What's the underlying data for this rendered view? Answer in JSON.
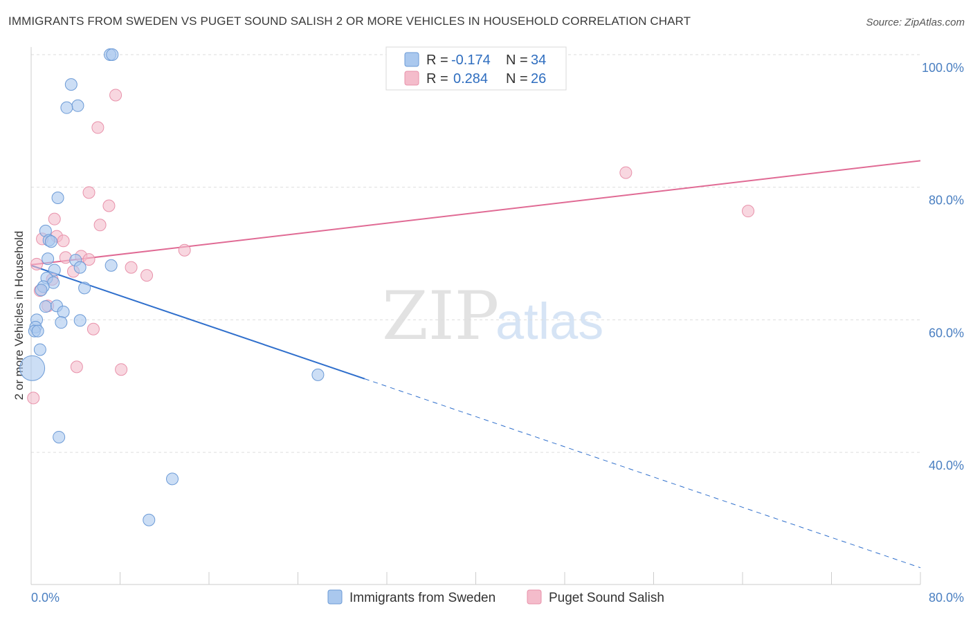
{
  "title": "IMMIGRANTS FROM SWEDEN VS PUGET SOUND SALISH 2 OR MORE VEHICLES IN HOUSEHOLD CORRELATION CHART",
  "source": "Source: ZipAtlas.com",
  "watermark": {
    "zip": "ZIP",
    "atlas": "atlas"
  },
  "legend": {
    "rows": [
      {
        "r_label": "R =",
        "r_value": "-0.174",
        "n_label": "N =",
        "n_value": "34"
      },
      {
        "r_label": "R =",
        "r_value": "0.284",
        "n_label": "N =",
        "n_value": "26"
      }
    ]
  },
  "colors": {
    "blue_fill": "#aac8ee",
    "blue_stroke": "#6b9ad6",
    "blue_line": "#2f6fcc",
    "pink_fill": "#f4bccb",
    "pink_stroke": "#e891aa",
    "pink_line": "#e06a94",
    "grid": "#dddddd",
    "tick_text": "#4a7fc1"
  },
  "chart_data": {
    "type": "scatter",
    "ylabel": "2 or more Vehicles in Household",
    "xlabel": "",
    "x_tick_labels": [
      "0.0%",
      "80.0%"
    ],
    "y_tick_labels": [
      "100.0%",
      "80.0%",
      "60.0%",
      "40.0%"
    ],
    "y_ticks": [
      100,
      80,
      60,
      40
    ],
    "xlim": [
      0,
      80
    ],
    "ylim": [
      22,
      102
    ],
    "grid": true,
    "legend_position": "top-center",
    "series": [
      {
        "name": "Immigrants from Sweden",
        "color": "#aac8ee",
        "stroke": "#6b9ad6",
        "points": [
          {
            "x": 7.1,
            "y": 100.0
          },
          {
            "x": 7.3,
            "y": 100.0
          },
          {
            "x": 3.6,
            "y": 95.5
          },
          {
            "x": 4.2,
            "y": 92.3
          },
          {
            "x": 3.2,
            "y": 92.0
          },
          {
            "x": 2.4,
            "y": 78.4
          },
          {
            "x": 1.3,
            "y": 73.4
          },
          {
            "x": 1.6,
            "y": 72.0
          },
          {
            "x": 1.8,
            "y": 71.8
          },
          {
            "x": 4.0,
            "y": 69.0
          },
          {
            "x": 1.5,
            "y": 69.2
          },
          {
            "x": 7.2,
            "y": 68.2
          },
          {
            "x": 2.1,
            "y": 67.5
          },
          {
            "x": 4.4,
            "y": 67.9
          },
          {
            "x": 1.4,
            "y": 66.3
          },
          {
            "x": 2.0,
            "y": 65.6
          },
          {
            "x": 1.1,
            "y": 65.0
          },
          {
            "x": 0.9,
            "y": 64.5
          },
          {
            "x": 4.8,
            "y": 64.8
          },
          {
            "x": 1.3,
            "y": 62.0
          },
          {
            "x": 2.3,
            "y": 62.1
          },
          {
            "x": 2.9,
            "y": 61.2
          },
          {
            "x": 0.5,
            "y": 60.0
          },
          {
            "x": 4.4,
            "y": 59.9
          },
          {
            "x": 2.7,
            "y": 59.6
          },
          {
            "x": 0.4,
            "y": 58.9
          },
          {
            "x": 0.3,
            "y": 58.3
          },
          {
            "x": 0.6,
            "y": 58.3
          },
          {
            "x": 0.8,
            "y": 55.5
          },
          {
            "x": 0.1,
            "y": 52.7,
            "large": true
          },
          {
            "x": 25.8,
            "y": 51.7
          },
          {
            "x": 2.5,
            "y": 42.3
          },
          {
            "x": 12.7,
            "y": 36.0
          },
          {
            "x": 10.6,
            "y": 29.8
          }
        ],
        "trend": {
          "x0": 0,
          "y0": 68.2,
          "x1": 30.0,
          "y1": 51.1,
          "dash_to_x": 80.0,
          "dash_to_y": 22.6
        }
      },
      {
        "name": "Puget Sound Salish",
        "color": "#f4bccb",
        "stroke": "#e891aa",
        "points": [
          {
            "x": 7.6,
            "y": 93.9
          },
          {
            "x": 6.0,
            "y": 89.0
          },
          {
            "x": 5.2,
            "y": 79.2
          },
          {
            "x": 7.0,
            "y": 77.2
          },
          {
            "x": 2.1,
            "y": 75.2
          },
          {
            "x": 6.2,
            "y": 74.3
          },
          {
            "x": 1.0,
            "y": 72.2
          },
          {
            "x": 2.3,
            "y": 72.6
          },
          {
            "x": 2.9,
            "y": 71.9
          },
          {
            "x": 13.8,
            "y": 70.5
          },
          {
            "x": 4.5,
            "y": 69.6
          },
          {
            "x": 5.2,
            "y": 69.1
          },
          {
            "x": 3.1,
            "y": 69.4
          },
          {
            "x": 0.5,
            "y": 68.4
          },
          {
            "x": 9.0,
            "y": 67.9
          },
          {
            "x": 3.8,
            "y": 67.3
          },
          {
            "x": 10.4,
            "y": 66.7
          },
          {
            "x": 1.9,
            "y": 66.1
          },
          {
            "x": 0.8,
            "y": 64.4
          },
          {
            "x": 1.5,
            "y": 62.1
          },
          {
            "x": 5.6,
            "y": 58.6
          },
          {
            "x": 4.1,
            "y": 52.9
          },
          {
            "x": 8.1,
            "y": 52.5
          },
          {
            "x": 0.2,
            "y": 48.2
          },
          {
            "x": 53.5,
            "y": 82.2
          },
          {
            "x": 64.5,
            "y": 76.4
          }
        ],
        "trend": {
          "x0": 0,
          "y0": 68.3,
          "x1": 80.0,
          "y1": 84.0
        }
      }
    ]
  }
}
